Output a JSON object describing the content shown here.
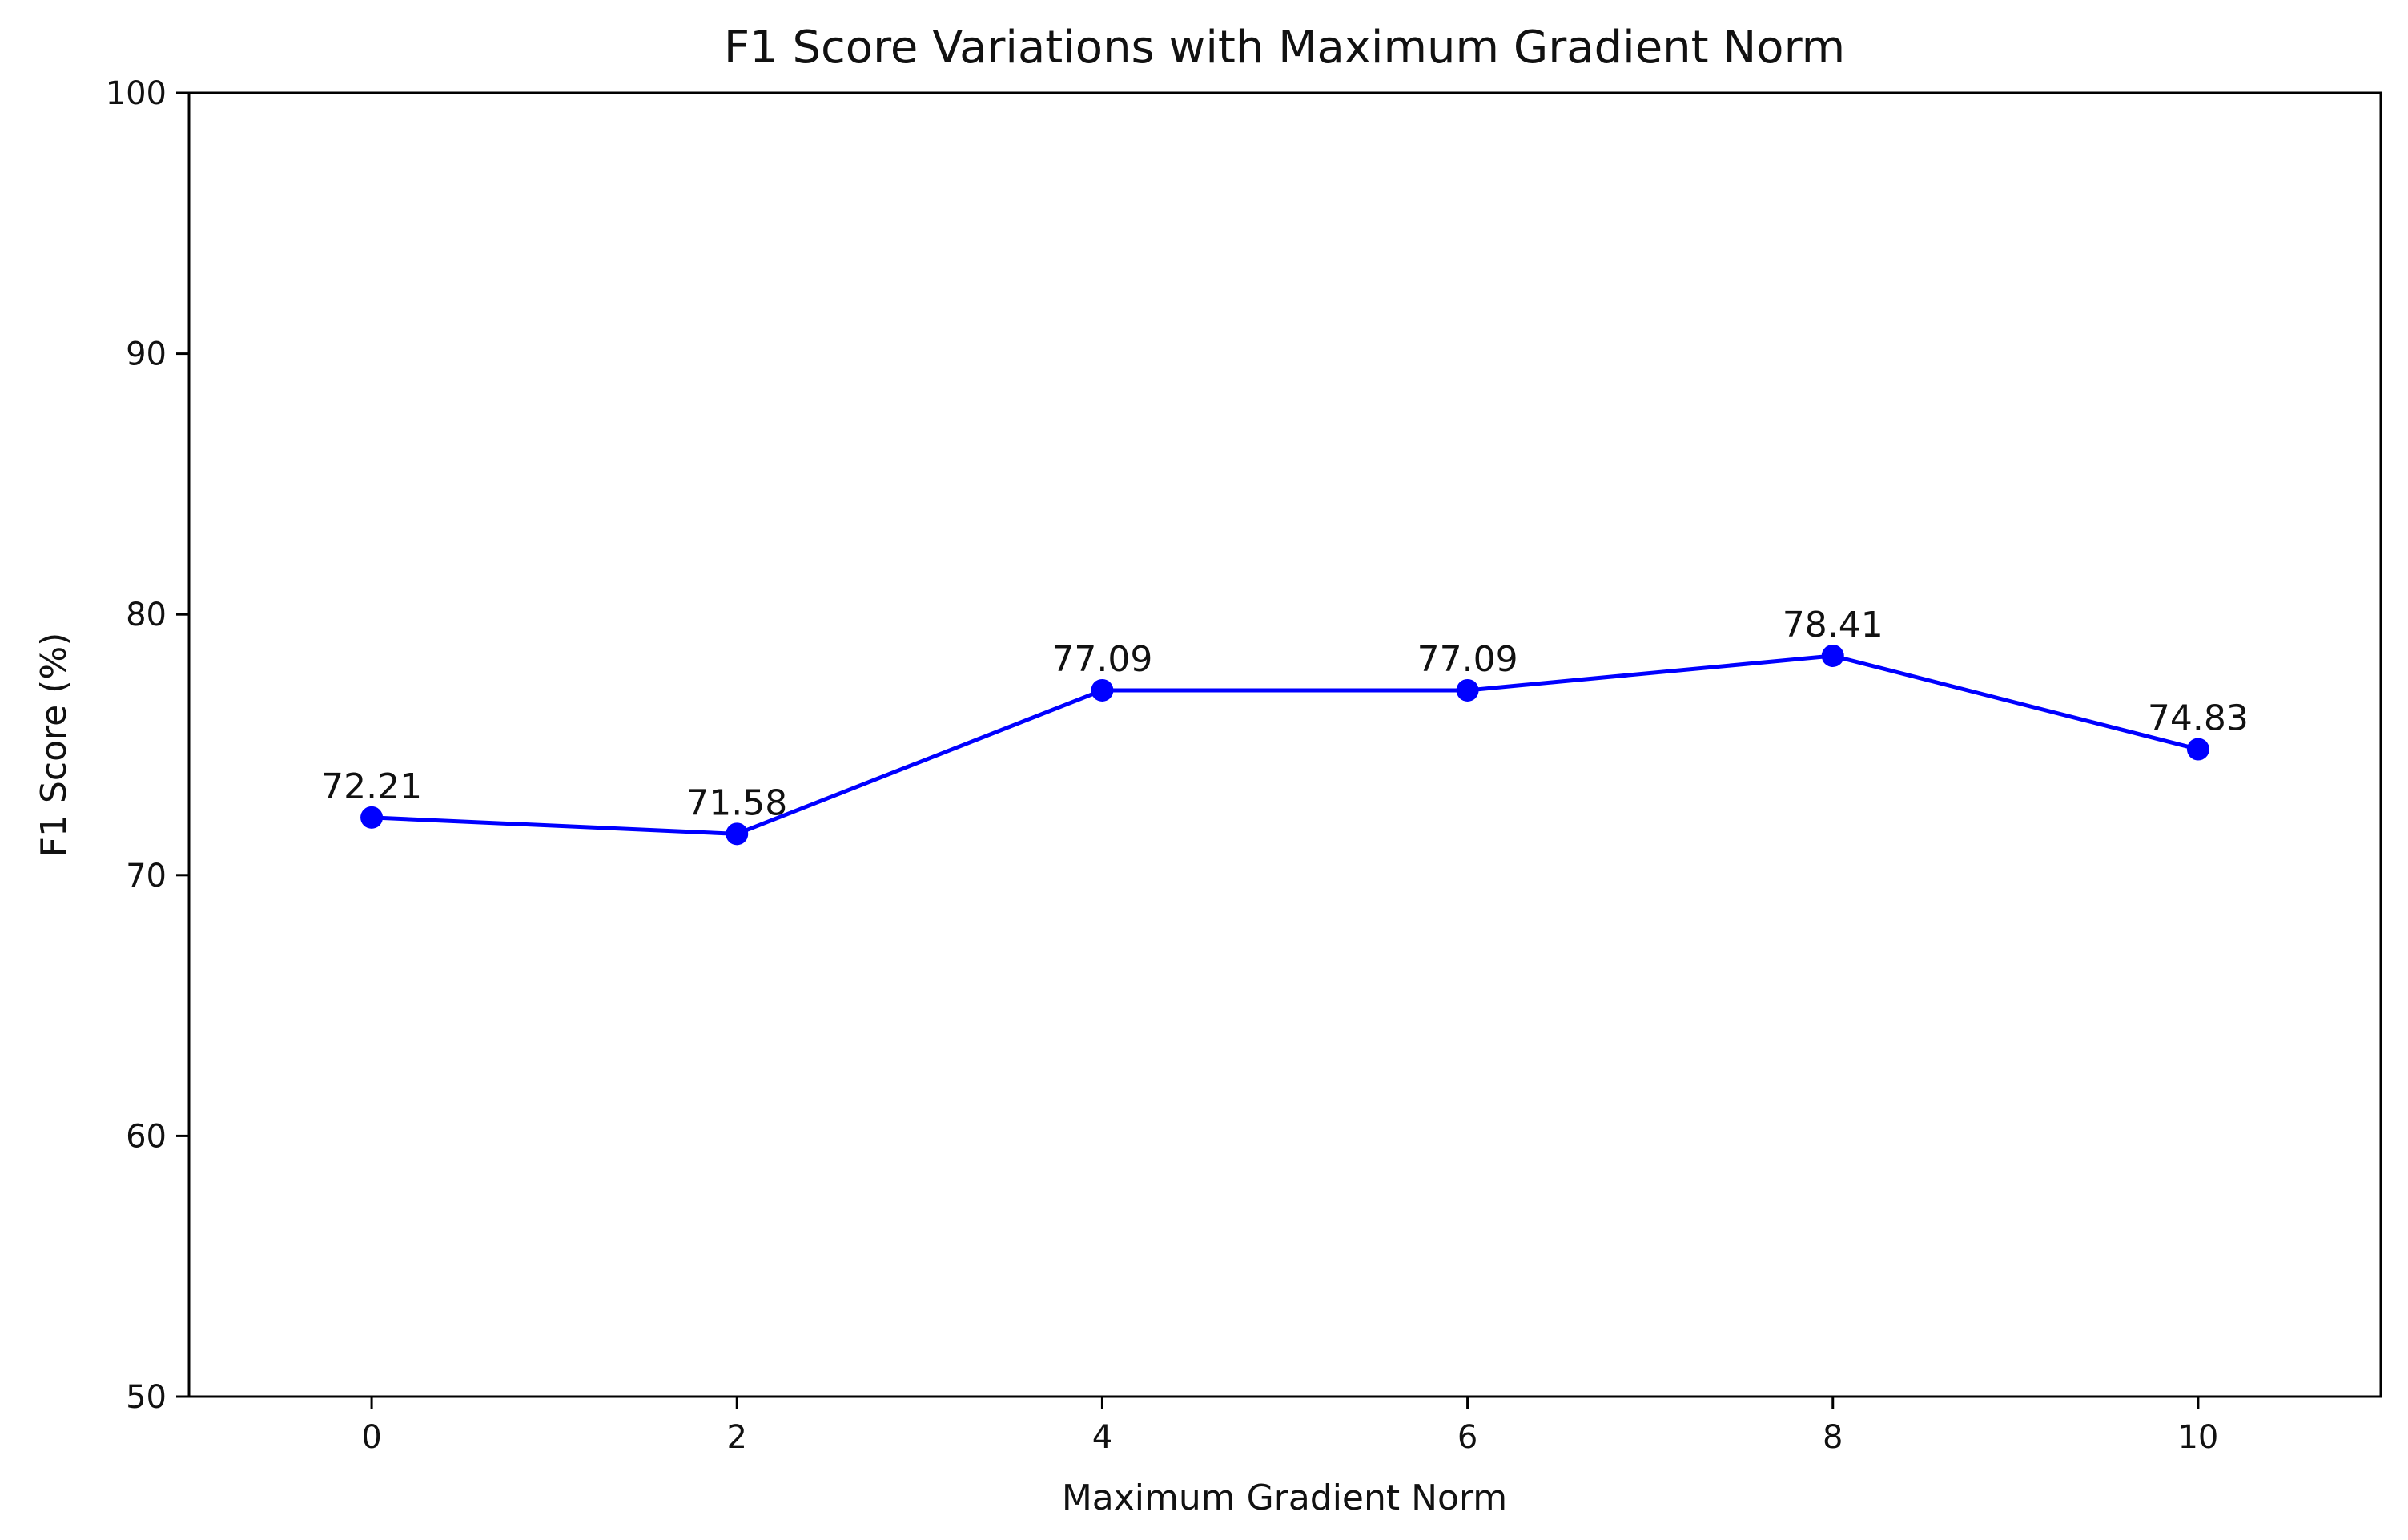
{
  "chart_data": {
    "type": "line",
    "title": "F1 Score Variations with Maximum Gradient Norm",
    "xlabel": "Maximum Gradient Norm",
    "ylabel": "F1 Score (%)",
    "x": [
      0,
      2,
      4,
      6,
      8,
      10
    ],
    "series": [
      {
        "values": [
          72.21,
          71.58,
          77.09,
          77.09,
          78.41,
          74.83
        ],
        "color": "#0000ff",
        "marker": "circle"
      }
    ],
    "data_labels": [
      "72.21",
      "71.58",
      "77.09",
      "77.09",
      "78.41",
      "74.83"
    ],
    "xlim": [
      -1,
      11
    ],
    "ylim": [
      50,
      100
    ],
    "xticks": [
      0,
      2,
      4,
      6,
      8,
      10
    ],
    "xtick_labels": [
      "0",
      "2",
      "4",
      "6",
      "8",
      "10"
    ],
    "yticks": [
      50,
      60,
      70,
      80,
      90,
      100
    ],
    "ytick_labels": [
      "50",
      "60",
      "70",
      "80",
      "90",
      "100"
    ],
    "grid": false,
    "legend": "none"
  }
}
